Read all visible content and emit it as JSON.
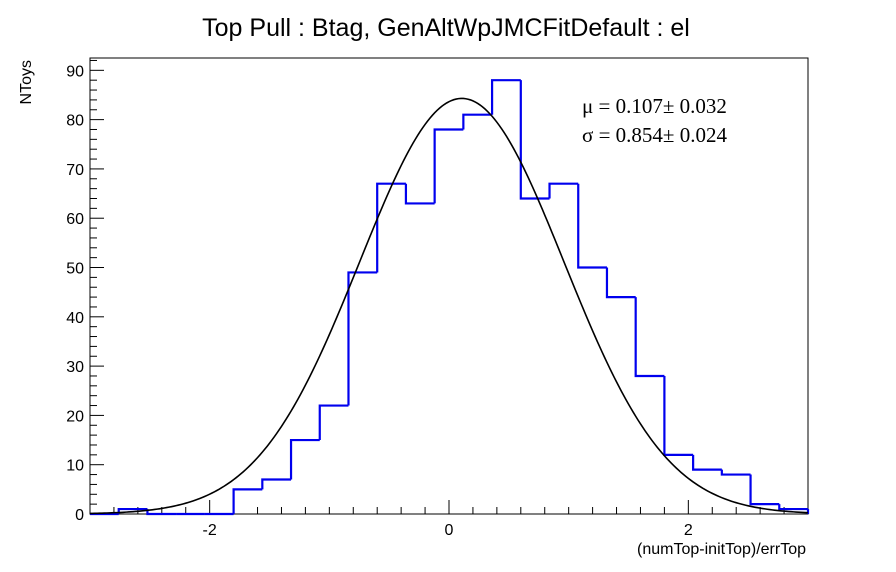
{
  "chart_data": {
    "type": "bar",
    "title": "Top Pull : Btag, GenAltWpJMCFitDefault : el",
    "xlabel": "(numTop-initTop)/errTop",
    "ylabel": "NToys",
    "xlim": [
      -3,
      3
    ],
    "ylim": [
      0,
      92.5
    ],
    "xticks": [
      -2,
      0,
      2
    ],
    "xtick_labels": [
      "-2",
      "0",
      "2"
    ],
    "yticks": [
      0,
      10,
      20,
      30,
      40,
      50,
      60,
      70,
      80,
      90
    ],
    "ytick_labels": [
      "0",
      "10",
      "20",
      "30",
      "40",
      "50",
      "60",
      "70",
      "80",
      "90"
    ],
    "grid": false,
    "bin_width": 0.24,
    "bin_edges_start": -3,
    "histogram_values": [
      0,
      1,
      0,
      0,
      0,
      5,
      7,
      15,
      22,
      49,
      67,
      63,
      78,
      81,
      88,
      64,
      67,
      50,
      44,
      28,
      12,
      9,
      8,
      2,
      1,
      0
    ],
    "fit": {
      "mu": 0.107,
      "mu_err": 0.032,
      "sigma": 0.854,
      "sigma_err": 0.024,
      "peak": 84.3
    },
    "stats_lines": [
      "μ =  0.107± 0.032",
      "σ =  0.854± 0.024"
    ],
    "colors": {
      "histogram": "#0000ee",
      "fit": "#000000",
      "axis": "#000000"
    }
  }
}
